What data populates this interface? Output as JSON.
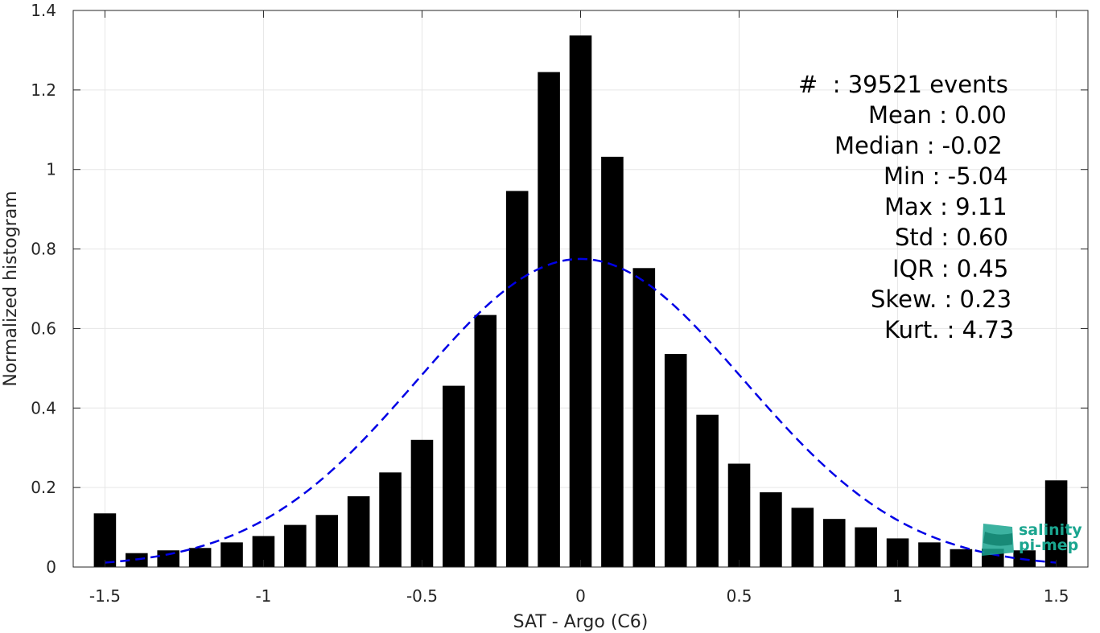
{
  "chart_data": {
    "type": "bar",
    "xlabel": "SAT - Argo (C6)",
    "ylabel": "Normalized histogram",
    "xlim": [
      -1.6,
      1.6
    ],
    "ylim": [
      0,
      1.4
    ],
    "xticks": [
      -1.5,
      -1,
      -0.5,
      0,
      0.5,
      1,
      1.5
    ],
    "xtick_labels": [
      "-1.5",
      "-1",
      "-0.5",
      "0",
      "0.5",
      "1",
      "1.5"
    ],
    "yticks": [
      0,
      0.2,
      0.4,
      0.6,
      0.8,
      1.0,
      1.2,
      1.4
    ],
    "ytick_labels": [
      "0",
      "0.2",
      "0.4",
      "0.6",
      "0.8",
      "1",
      "1.2",
      "1.4"
    ],
    "grid": true,
    "bar_centers": [
      -1.5,
      -1.4,
      -1.3,
      -1.2,
      -1.1,
      -1.0,
      -0.9,
      -0.8,
      -0.7,
      -0.6,
      -0.5,
      -0.4,
      -0.3,
      -0.2,
      -0.1,
      0.0,
      0.1,
      0.2,
      0.3,
      0.4,
      0.5,
      0.6,
      0.7,
      0.8,
      0.9,
      1.0,
      1.1,
      1.2,
      1.3,
      1.4,
      1.5
    ],
    "values": [
      0.135,
      0.035,
      0.042,
      0.048,
      0.062,
      0.078,
      0.106,
      0.131,
      0.178,
      0.238,
      0.32,
      0.456,
      0.634,
      0.946,
      1.245,
      1.337,
      1.032,
      0.752,
      0.536,
      0.383,
      0.26,
      0.188,
      0.149,
      0.121,
      0.1,
      0.072,
      0.062,
      0.045,
      0.046,
      0.042,
      0.218
    ],
    "bar_color": "#000000",
    "fit_curve": {
      "style": "dashed",
      "color": "#0000e6",
      "mean": 0.0,
      "std": 0.515,
      "peak": 0.775,
      "x_range": [
        -1.5,
        1.5
      ]
    }
  },
  "stats": [
    {
      "label": "#  : 39521 events"
    },
    {
      "label": "Mean : 0.00"
    },
    {
      "label": "Median : -0.02"
    },
    {
      "label": "Min : -5.04"
    },
    {
      "label": "Max : 9.11"
    },
    {
      "label": "Std : 0.60"
    },
    {
      "label": "IQR : 0.45"
    },
    {
      "label": "Skew. : 0.23"
    },
    {
      "label": "Kurt. : 4.73"
    }
  ],
  "logo": {
    "line1": "salinity",
    "line2": "pi-mep",
    "color": "#1aa58f"
  }
}
